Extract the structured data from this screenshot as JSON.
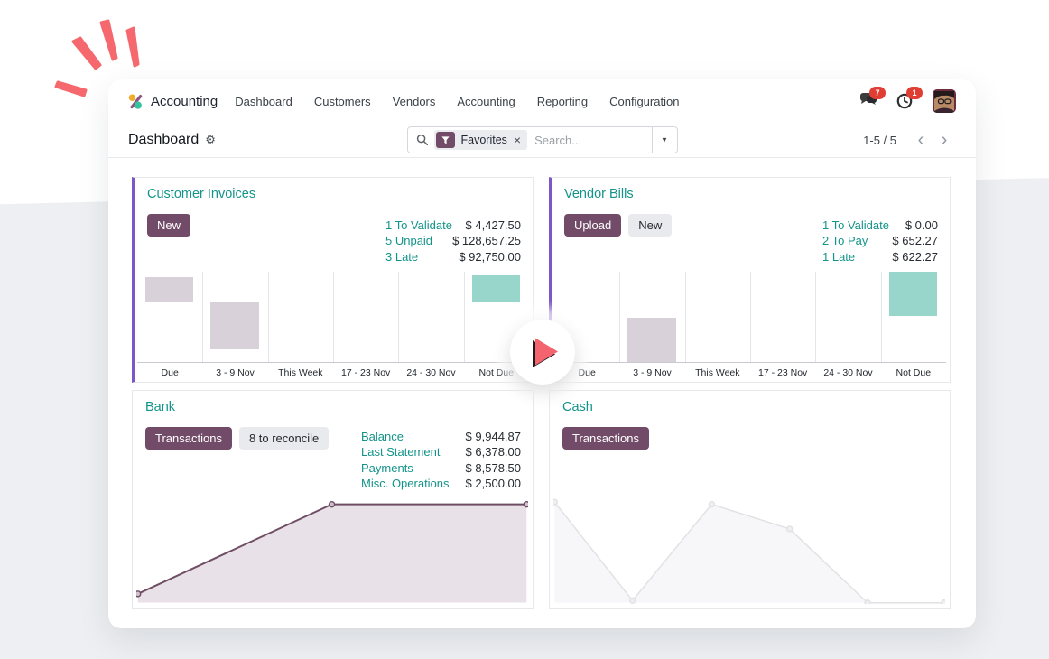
{
  "nav": {
    "app_name": "Accounting",
    "menu": [
      "Dashboard",
      "Customers",
      "Vendors",
      "Accounting",
      "Reporting",
      "Configuration"
    ],
    "messages_badge": "7",
    "activities_badge": "1"
  },
  "control_panel": {
    "title": "Dashboard",
    "search": {
      "facet_label": "Favorites",
      "placeholder": "Search..."
    },
    "pager": {
      "display": "1-5 / 5"
    }
  },
  "icons": {
    "gear": "⚙",
    "close": "×",
    "caret_down": "▼",
    "chevron_left": "‹",
    "chevron_right": "›"
  },
  "cards": {
    "customer_invoices": {
      "title": "Customer Invoices",
      "buttons": [
        {
          "label": "New",
          "variant": "primary"
        }
      ],
      "stats": [
        {
          "label": "1 To Validate",
          "value": "$ 4,427.50"
        },
        {
          "label": "5 Unpaid",
          "value": "$ 128,657.25"
        },
        {
          "label": "3 Late",
          "value": "$ 92,750.00"
        }
      ],
      "graph": {
        "type": "bar",
        "categories": [
          "Due",
          "3 - 9 Nov",
          "This Week",
          "17 - 23 Nov",
          "24 - 30 Nov",
          "Not Due"
        ],
        "bars": [
          {
            "col": 0,
            "color": "bar_muted",
            "top_pct": 6,
            "height_pct": 28
          },
          {
            "col": 1,
            "color": "bar_muted",
            "top_pct": 34,
            "height_pct": 51
          },
          {
            "col": 5,
            "color": "bar_teal",
            "top_pct": 4,
            "height_pct": 30
          }
        ]
      }
    },
    "vendor_bills": {
      "title": "Vendor Bills",
      "buttons": [
        {
          "label": "Upload",
          "variant": "primary"
        },
        {
          "label": "New",
          "variant": "secondary"
        }
      ],
      "stats": [
        {
          "label": "1 To Validate",
          "value": "$ 0.00"
        },
        {
          "label": "2 To Pay",
          "value": "$ 652.27"
        },
        {
          "label": "1 Late",
          "value": "$ 622.27"
        }
      ],
      "graph": {
        "type": "bar",
        "categories": [
          "Due",
          "3 - 9 Nov",
          "This Week",
          "17 - 23 Nov",
          "24 - 30 Nov",
          "Not Due"
        ],
        "bars": [
          {
            "col": 1,
            "color": "bar_muted",
            "top_pct": 50,
            "height_pct": 49
          },
          {
            "col": 5,
            "color": "bar_teal",
            "top_pct": 0,
            "height_pct": 49
          }
        ]
      }
    },
    "bank": {
      "title": "Bank",
      "buttons": [
        {
          "label": "Transactions",
          "variant": "primary"
        },
        {
          "label": "8 to reconcile",
          "variant": "secondary"
        }
      ],
      "stats": [
        {
          "label": "Balance",
          "value": "$ 9,944.87"
        },
        {
          "label": "Last Statement",
          "value": "$ 6,378.00"
        },
        {
          "label": "Payments",
          "value": "$ 8,578.50"
        },
        {
          "label": "Misc. Operations",
          "value": "$ 2,500.00"
        }
      ],
      "graph": {
        "type": "line",
        "line": "bank_line",
        "fill": "bank_fill",
        "marker_fill": "bank_marker",
        "stroke_width": 2,
        "points": [
          [
            0.4,
            91
          ],
          [
            49.9,
            11
          ],
          [
            99.6,
            11
          ]
        ]
      }
    },
    "cash": {
      "title": "Cash",
      "buttons": [
        {
          "label": "Transactions",
          "variant": "primary"
        }
      ],
      "stats": [],
      "graph": {
        "type": "line",
        "line": "cash_line",
        "fill": "cash_fill",
        "marker_fill": "cash_marker",
        "stroke_width": 1.5,
        "points": [
          [
            0.3,
            9
          ],
          [
            20.2,
            97
          ],
          [
            40.4,
            11
          ],
          [
            60.3,
            33
          ],
          [
            80.2,
            99
          ],
          [
            99.7,
            99
          ]
        ]
      }
    }
  },
  "colors": {
    "primary": "#714b67",
    "accent_border": "#7c57c5",
    "link_teal": "#13948a",
    "bar_muted": "#d9d1d9",
    "bar_teal": "#98d5cb",
    "bank_line": "#6f4d64",
    "bank_fill": "#e8e1e7",
    "bank_marker": "#cfc0cb",
    "cash_line": "#e2e1e4",
    "cash_fill": "#f7f6f8",
    "cash_marker": "#efeef1",
    "badge_red": "#e03d33",
    "doodle_coral": "#f5696e",
    "play_coral": "#f4646e"
  }
}
